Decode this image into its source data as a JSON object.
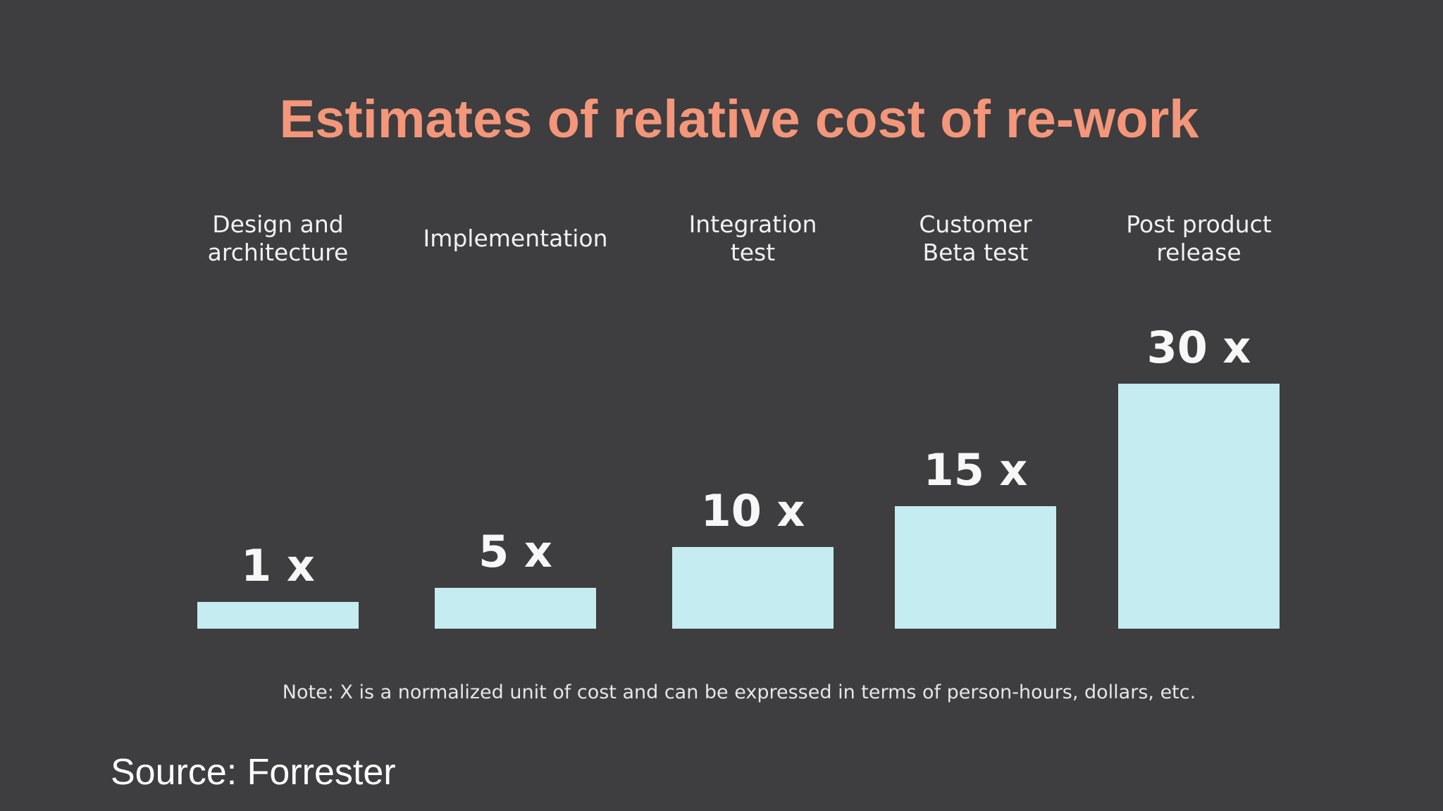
{
  "chart_data": {
    "type": "bar",
    "title": "Estimates of relative cost of re-work",
    "categories": [
      [
        "Design and",
        "architecture"
      ],
      [
        "Implementation"
      ],
      [
        "Integration",
        "test"
      ],
      [
        "Customer",
        "Beta test"
      ],
      [
        "Post product",
        "release"
      ]
    ],
    "values": [
      1,
      5,
      10,
      15,
      30
    ],
    "value_labels": [
      "1 x",
      "5 x",
      "10 x",
      "15 x",
      "30 x"
    ],
    "bar_color": "#c5ecf0",
    "grid": false,
    "legend": "none"
  },
  "note": "Note: X is a normalized unit of cost and can be expressed in terms of person-hours, dollars, etc.",
  "source": "Source: Forrester",
  "colors": {
    "background": "#3e3d3f",
    "title": "#f3967a",
    "bar": "#c5ecf0"
  }
}
